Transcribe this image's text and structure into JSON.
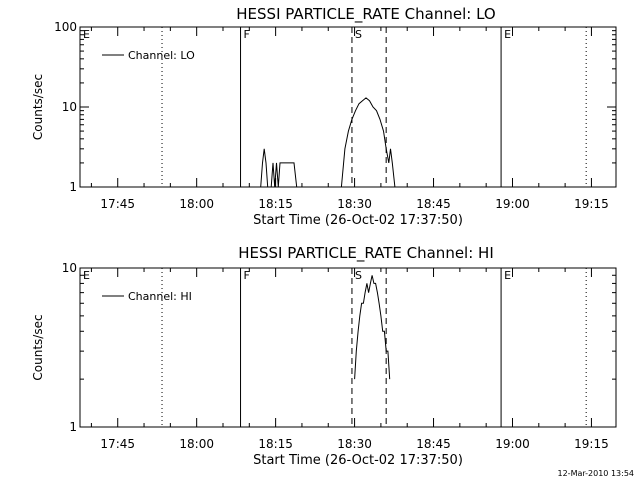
{
  "footer": {
    "timestamp": "12-Mar-2010 13:54"
  },
  "chart_data": [
    {
      "type": "line",
      "title": "HESSI PARTICLE_RATE Channel: LO",
      "xlabel": "Start Time (26-Oct-02 17:37:50)",
      "ylabel": "Counts/sec",
      "yscale": "log",
      "ylim": [
        1,
        100
      ],
      "yticks": [
        {
          "value": 1,
          "label": "1"
        },
        {
          "value": 10,
          "label": "10"
        },
        {
          "value": 100,
          "label": "100"
        }
      ],
      "xlim": [
        "17:37:50",
        "19:19:40"
      ],
      "xticks": [
        "17:45",
        "18:00",
        "18:15",
        "18:30",
        "18:45",
        "19:00",
        "19:15"
      ],
      "legend": {
        "position": "top-left",
        "entries": [
          "Channel: LO"
        ]
      },
      "markers": [
        {
          "label": "E",
          "time": "17:37:50",
          "style": "none"
        },
        {
          "label": "",
          "time": "17:53:25",
          "style": "dotted"
        },
        {
          "label": "F",
          "time": "18:08:20",
          "style": "solid"
        },
        {
          "label": "S",
          "time": "18:29:30",
          "style": "dashed"
        },
        {
          "label": "",
          "time": "18:36:00",
          "style": "dashed"
        },
        {
          "label": "E",
          "time": "18:57:50",
          "style": "solid"
        },
        {
          "label": "",
          "time": "19:14:00",
          "style": "dotted"
        }
      ],
      "series": [
        {
          "name": "Channel: LO",
          "points": [
            [
              "18:12:10",
              1
            ],
            [
              "18:12:30",
              2
            ],
            [
              "18:12:50",
              3
            ],
            [
              "18:13:10",
              2
            ],
            [
              "18:13:30",
              1
            ],
            [
              "18:14:10",
              1
            ],
            [
              "18:14:30",
              2
            ],
            [
              "18:14:50",
              1
            ],
            [
              "18:15:10",
              2
            ],
            [
              "18:15:30",
              1
            ],
            [
              "18:15:50",
              2
            ],
            [
              "18:16:10",
              2
            ],
            [
              "18:16:30",
              2
            ],
            [
              "18:17:00",
              2
            ],
            [
              "18:17:30",
              2
            ],
            [
              "18:18:00",
              2
            ],
            [
              "18:18:30",
              2
            ],
            [
              "18:19:00",
              1
            ],
            [
              "18:27:30",
              1
            ],
            [
              "18:28:10",
              3
            ],
            [
              "18:28:50",
              5
            ],
            [
              "18:29:30",
              7
            ],
            [
              "18:30:10",
              9
            ],
            [
              "18:30:50",
              11
            ],
            [
              "18:31:30",
              12
            ],
            [
              "18:32:10",
              13
            ],
            [
              "18:32:50",
              12
            ],
            [
              "18:33:30",
              10
            ],
            [
              "18:34:10",
              9
            ],
            [
              "18:34:50",
              7
            ],
            [
              "18:35:30",
              5
            ],
            [
              "18:36:00",
              3
            ],
            [
              "18:36:30",
              2
            ],
            [
              "18:36:50",
              3
            ],
            [
              "18:37:10",
              2
            ],
            [
              "18:37:40",
              1
            ]
          ]
        }
      ]
    },
    {
      "type": "line",
      "title": "HESSI PARTICLE_RATE Channel: HI",
      "xlabel": "Start Time (26-Oct-02 17:37:50)",
      "ylabel": "Counts/sec",
      "yscale": "log",
      "ylim": [
        1,
        10
      ],
      "yticks": [
        {
          "value": 1,
          "label": "1"
        },
        {
          "value": 10,
          "label": "10"
        }
      ],
      "xlim": [
        "17:37:50",
        "19:19:40"
      ],
      "xticks": [
        "17:45",
        "18:00",
        "18:15",
        "18:30",
        "18:45",
        "19:00",
        "19:15"
      ],
      "legend": {
        "position": "top-left",
        "entries": [
          "Channel: HI"
        ]
      },
      "markers": [
        {
          "label": "E",
          "time": "17:37:50",
          "style": "none"
        },
        {
          "label": "",
          "time": "17:53:25",
          "style": "dotted"
        },
        {
          "label": "F",
          "time": "18:08:20",
          "style": "solid"
        },
        {
          "label": "S",
          "time": "18:29:30",
          "style": "dashed"
        },
        {
          "label": "",
          "time": "18:36:00",
          "style": "dashed"
        },
        {
          "label": "E",
          "time": "18:57:50",
          "style": "solid"
        },
        {
          "label": "",
          "time": "19:14:00",
          "style": "dotted"
        }
      ],
      "series": [
        {
          "name": "Channel: HI",
          "points": [
            [
              "18:30:00",
              2
            ],
            [
              "18:30:20",
              3
            ],
            [
              "18:30:40",
              4
            ],
            [
              "18:31:00",
              5
            ],
            [
              "18:31:20",
              6
            ],
            [
              "18:31:40",
              6
            ],
            [
              "18:32:00",
              7
            ],
            [
              "18:32:20",
              8
            ],
            [
              "18:32:40",
              7
            ],
            [
              "18:33:00",
              8
            ],
            [
              "18:33:20",
              9
            ],
            [
              "18:33:40",
              8
            ],
            [
              "18:34:00",
              8
            ],
            [
              "18:34:20",
              7
            ],
            [
              "18:34:40",
              6
            ],
            [
              "18:35:00",
              5
            ],
            [
              "18:35:20",
              4
            ],
            [
              "18:35:40",
              4
            ],
            [
              "18:36:00",
              3
            ],
            [
              "18:36:20",
              3
            ],
            [
              "18:36:40",
              2
            ]
          ]
        }
      ]
    }
  ]
}
